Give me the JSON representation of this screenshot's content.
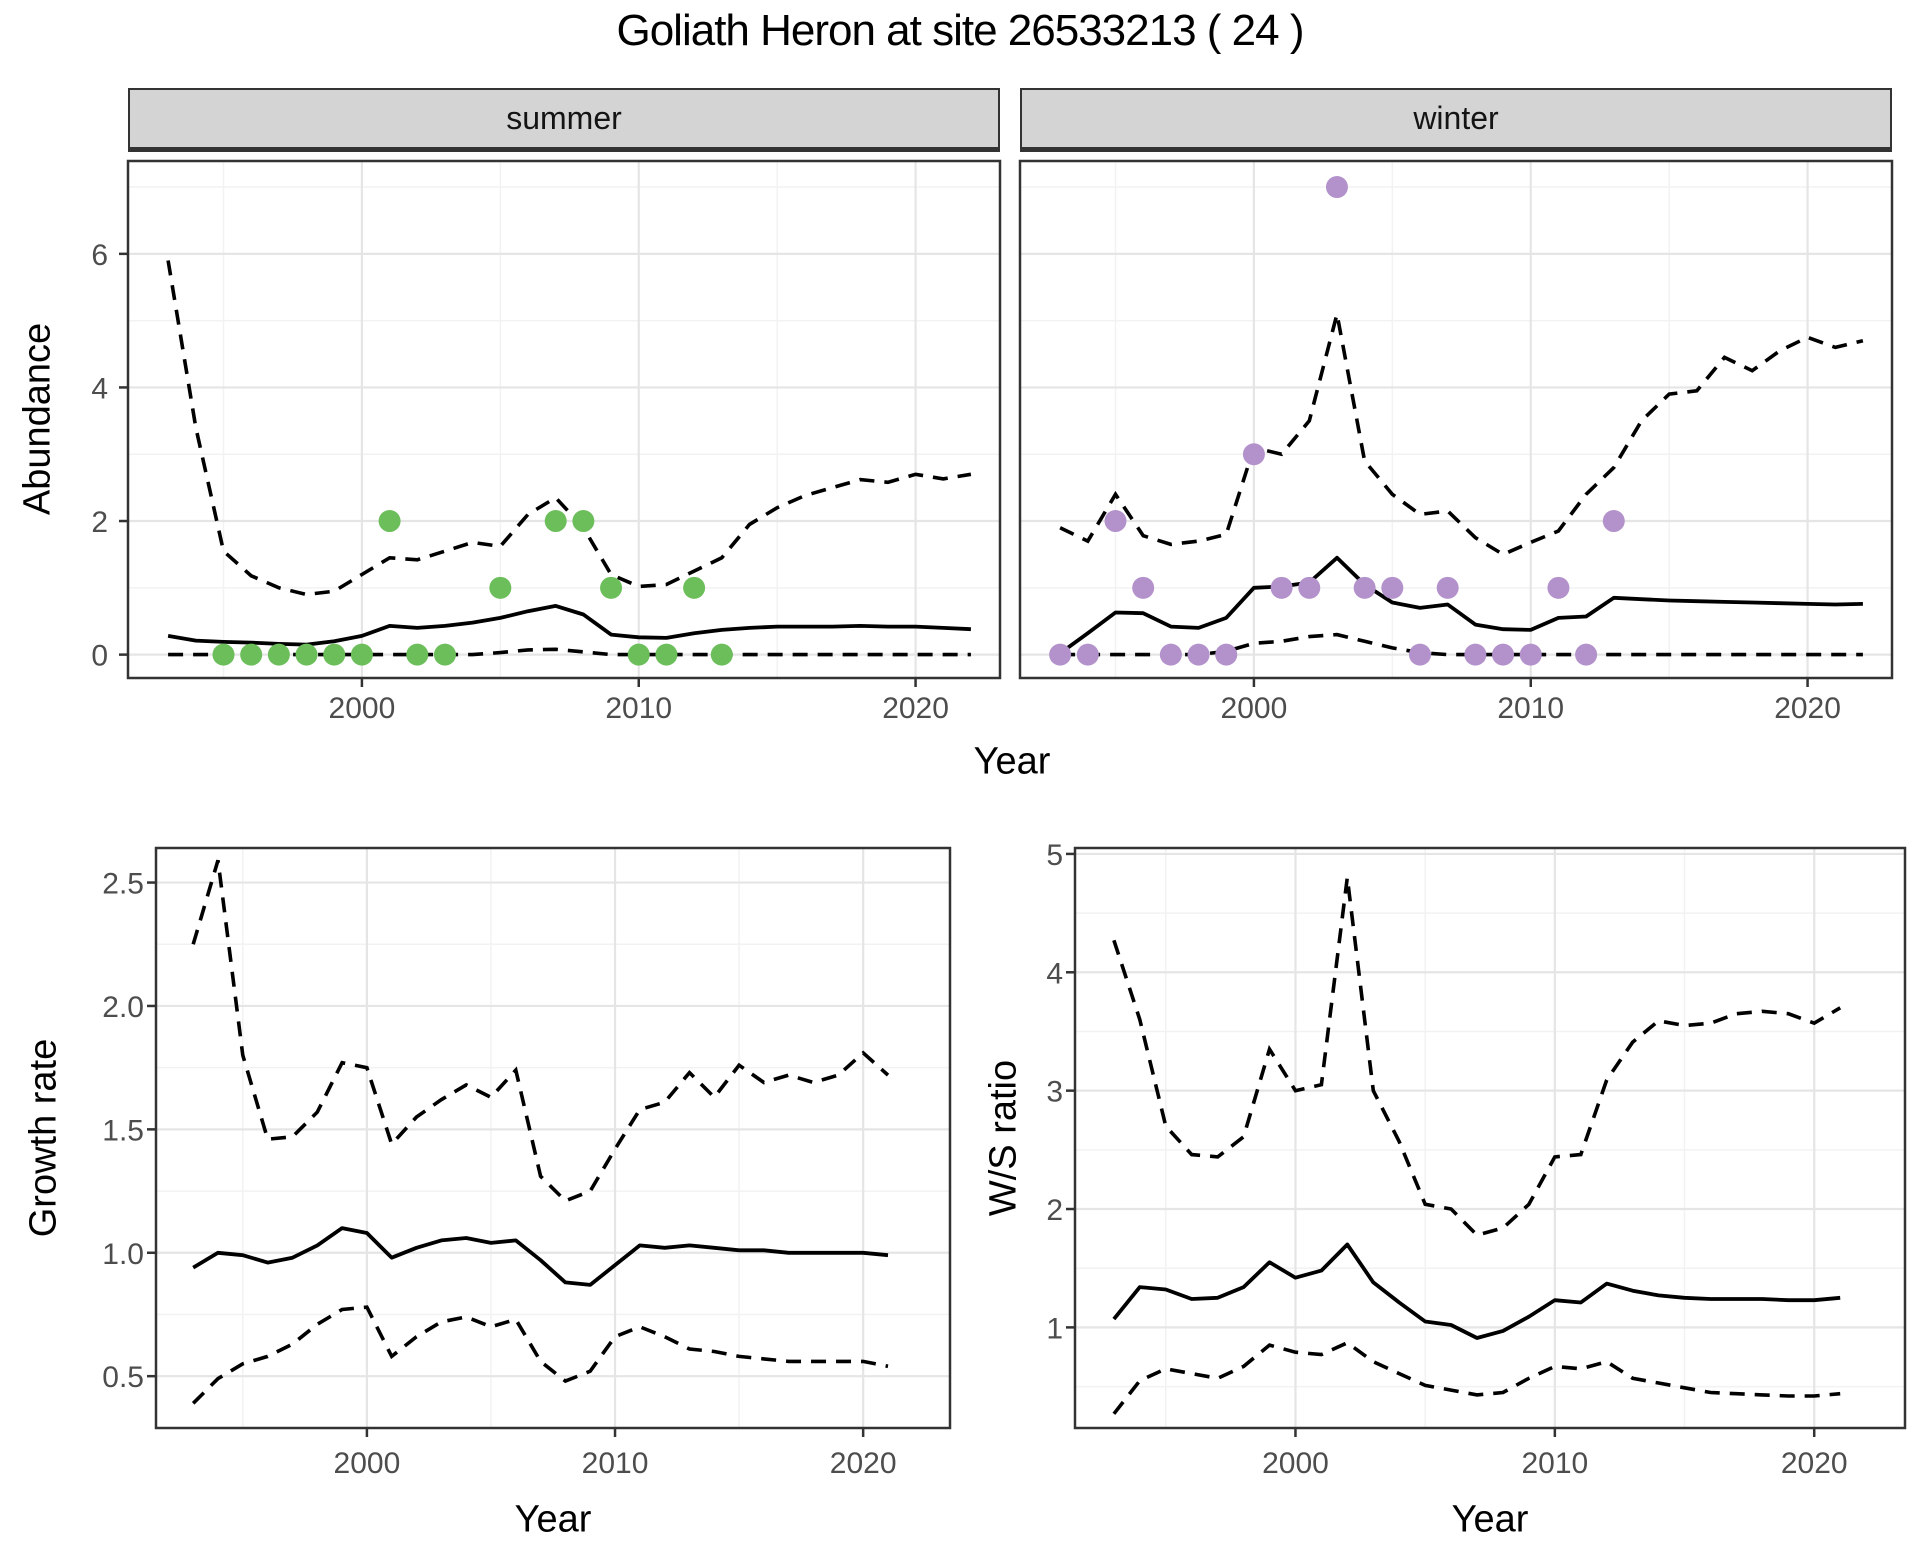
{
  "title": "Goliath Heron at site 26533213 ( 24 )",
  "facets": {
    "summer": "summer",
    "winter": "winter"
  },
  "axes": {
    "year_label": "Year",
    "abundance_label": "Abundance",
    "growth_label": "Growth rate",
    "ws_label": "W/S ratio",
    "x_tick_labels": [
      "2000",
      "2010",
      "2020"
    ]
  },
  "colors": {
    "summer_point": "#6cbe5b",
    "winter_point": "#b392cc",
    "line": "#000000",
    "grid_major": "#e5e5e5",
    "grid_minor": "#f2f2f2",
    "strip_bg": "#d4d4d4",
    "panel_border": "#333333",
    "tick_text": "#4d4d4d"
  },
  "chart_data": [
    {
      "type": "line",
      "name": "abundance-summer",
      "facet": "summer",
      "ylabel": "Abundance",
      "xlabel": "Year",
      "x": [
        1993,
        1994,
        1995,
        1996,
        1997,
        1998,
        1999,
        2000,
        2001,
        2002,
        2003,
        2004,
        2005,
        2006,
        2007,
        2008,
        2009,
        2010,
        2011,
        2012,
        2013,
        2014,
        2015,
        2016,
        2017,
        2018,
        2019,
        2020,
        2021,
        2022
      ],
      "series": [
        {
          "name": "median",
          "style": "solid",
          "values": [
            0.28,
            0.21,
            0.19,
            0.18,
            0.16,
            0.15,
            0.2,
            0.28,
            0.43,
            0.4,
            0.43,
            0.48,
            0.55,
            0.65,
            0.73,
            0.6,
            0.3,
            0.26,
            0.25,
            0.32,
            0.37,
            0.4,
            0.42,
            0.42,
            0.42,
            0.43,
            0.42,
            0.42,
            0.4,
            0.38
          ]
        },
        {
          "name": "upper CI",
          "style": "dashed",
          "values": [
            5.9,
            3.4,
            1.55,
            1.18,
            1.0,
            0.9,
            0.95,
            1.2,
            1.45,
            1.42,
            1.55,
            1.68,
            1.62,
            2.1,
            2.35,
            1.9,
            1.2,
            1.02,
            1.05,
            1.25,
            1.45,
            1.95,
            2.2,
            2.38,
            2.5,
            2.62,
            2.58,
            2.7,
            2.63,
            2.7
          ]
        },
        {
          "name": "lower CI",
          "style": "dashed",
          "values": [
            0,
            0,
            0,
            0,
            0,
            0,
            0,
            0,
            0,
            0,
            0,
            0,
            0.03,
            0.07,
            0.08,
            0.04,
            0,
            0,
            0,
            0,
            0,
            0,
            0,
            0,
            0,
            0,
            0,
            0,
            0,
            0
          ]
        }
      ],
      "points": {
        "name": "observed counts",
        "color_key": "summer_point",
        "data": [
          [
            1995,
            0
          ],
          [
            1996,
            0
          ],
          [
            1997,
            0
          ],
          [
            1998,
            0
          ],
          [
            1999,
            0
          ],
          [
            2000,
            0
          ],
          [
            2001,
            2
          ],
          [
            2002,
            0
          ],
          [
            2003,
            0
          ],
          [
            2005,
            1
          ],
          [
            2007,
            2
          ],
          [
            2008,
            2
          ],
          [
            2009,
            1
          ],
          [
            2010,
            0
          ],
          [
            2011,
            0
          ],
          [
            2012,
            1
          ],
          [
            2013,
            0
          ]
        ]
      },
      "ylim": [
        -0.35,
        7.39
      ],
      "y_ticks": [
        0,
        2,
        4,
        6
      ],
      "y_tick_labels": [
        "0",
        "2",
        "4",
        "6"
      ],
      "y_minor": [
        1,
        3,
        5,
        7
      ],
      "x_major": [
        2000,
        2010,
        2020
      ],
      "x_minor": [
        1995,
        2005,
        2015
      ]
    },
    {
      "type": "line",
      "name": "abundance-winter",
      "facet": "winter",
      "ylabel": "Abundance",
      "xlabel": "Year",
      "x": [
        1993,
        1994,
        1995,
        1996,
        1997,
        1998,
        1999,
        2000,
        2001,
        2002,
        2003,
        2004,
        2005,
        2006,
        2007,
        2008,
        2009,
        2010,
        2011,
        2012,
        2013,
        2014,
        2015,
        2016,
        2017,
        2018,
        2019,
        2020,
        2021,
        2022
      ],
      "series": [
        {
          "name": "median",
          "style": "solid",
          "values": [
            0.02,
            0.32,
            0.63,
            0.62,
            0.42,
            0.4,
            0.55,
            1.0,
            1.02,
            1.08,
            1.45,
            1.05,
            0.78,
            0.7,
            0.75,
            0.45,
            0.38,
            0.37,
            0.55,
            0.57,
            0.85,
            0.83,
            0.81,
            0.8,
            0.79,
            0.78,
            0.77,
            0.76,
            0.75,
            0.76
          ]
        },
        {
          "name": "upper CI",
          "style": "dashed",
          "values": [
            1.9,
            1.7,
            2.4,
            1.78,
            1.65,
            1.7,
            1.8,
            3.1,
            3.0,
            3.5,
            5.1,
            2.9,
            2.4,
            2.1,
            2.15,
            1.75,
            1.5,
            1.68,
            1.85,
            2.4,
            2.8,
            3.5,
            3.9,
            3.95,
            4.45,
            4.25,
            4.55,
            4.75,
            4.6,
            4.7
          ]
        },
        {
          "name": "lower CI",
          "style": "dashed",
          "values": [
            0,
            0,
            0,
            0,
            0,
            0,
            0.05,
            0.17,
            0.2,
            0.27,
            0.3,
            0.2,
            0.1,
            0.03,
            0,
            0,
            0,
            0,
            0,
            0,
            0,
            0,
            0,
            0,
            0,
            0,
            0,
            0,
            0,
            0
          ]
        }
      ],
      "points": {
        "name": "observed counts",
        "color_key": "winter_point",
        "data": [
          [
            1993,
            0
          ],
          [
            1994,
            0
          ],
          [
            1995,
            2
          ],
          [
            1996,
            1
          ],
          [
            1997,
            0
          ],
          [
            1998,
            0
          ],
          [
            1999,
            0
          ],
          [
            2000,
            3
          ],
          [
            2001,
            1
          ],
          [
            2002,
            1
          ],
          [
            2003,
            7
          ],
          [
            2004,
            1
          ],
          [
            2005,
            1
          ],
          [
            2006,
            0
          ],
          [
            2007,
            1
          ],
          [
            2008,
            0
          ],
          [
            2009,
            0
          ],
          [
            2010,
            0
          ],
          [
            2011,
            1
          ],
          [
            2012,
            0
          ],
          [
            2013,
            2
          ]
        ]
      },
      "ylim": [
        -0.35,
        7.39
      ],
      "y_ticks": [
        0,
        2,
        4,
        6
      ],
      "y_tick_labels": [
        "0",
        "2",
        "4",
        "6"
      ],
      "y_minor": [
        1,
        3,
        5,
        7
      ],
      "x_major": [
        2000,
        2010,
        2020
      ],
      "x_minor": [
        1995,
        2005,
        2015
      ]
    },
    {
      "type": "line",
      "name": "growth-rate",
      "ylabel": "Growth rate",
      "xlabel": "Year",
      "x": [
        1993,
        1994,
        1995,
        1996,
        1997,
        1998,
        1999,
        2000,
        2001,
        2002,
        2003,
        2004,
        2005,
        2006,
        2007,
        2008,
        2009,
        2010,
        2011,
        2012,
        2013,
        2014,
        2015,
        2016,
        2017,
        2018,
        2019,
        2020,
        2021
      ],
      "series": [
        {
          "name": "median",
          "style": "solid",
          "values": [
            0.94,
            1.0,
            0.99,
            0.96,
            0.98,
            1.03,
            1.1,
            1.08,
            0.98,
            1.02,
            1.05,
            1.06,
            1.04,
            1.05,
            0.97,
            0.88,
            0.87,
            0.95,
            1.03,
            1.02,
            1.03,
            1.02,
            1.01,
            1.01,
            1.0,
            1.0,
            1.0,
            1.0,
            0.99
          ]
        },
        {
          "name": "upper CI",
          "style": "dashed",
          "values": [
            2.25,
            2.59,
            1.8,
            1.46,
            1.47,
            1.57,
            1.77,
            1.75,
            1.44,
            1.55,
            1.62,
            1.68,
            1.63,
            1.74,
            1.31,
            1.21,
            1.25,
            1.42,
            1.58,
            1.61,
            1.73,
            1.63,
            1.76,
            1.69,
            1.72,
            1.69,
            1.72,
            1.81,
            1.72
          ]
        },
        {
          "name": "lower CI",
          "style": "dashed",
          "values": [
            0.39,
            0.49,
            0.55,
            0.58,
            0.63,
            0.71,
            0.77,
            0.78,
            0.58,
            0.66,
            0.72,
            0.74,
            0.7,
            0.73,
            0.56,
            0.48,
            0.52,
            0.66,
            0.7,
            0.66,
            0.61,
            0.6,
            0.58,
            0.57,
            0.56,
            0.56,
            0.56,
            0.56,
            0.54
          ]
        }
      ],
      "points": null,
      "ylim": [
        0.29,
        2.64
      ],
      "y_ticks": [
        0.5,
        1.0,
        1.5,
        2.0,
        2.5
      ],
      "y_tick_labels": [
        "0.5",
        "1.0",
        "1.5",
        "2.0",
        "2.5"
      ],
      "y_minor": [
        0.75,
        1.25,
        1.75,
        2.25
      ],
      "x_major": [
        2000,
        2010,
        2020
      ],
      "x_minor": [
        1995,
        2005,
        2015
      ]
    },
    {
      "type": "line",
      "name": "ws-ratio",
      "ylabel": "W/S ratio",
      "xlabel": "Year",
      "x": [
        1993,
        1994,
        1995,
        1996,
        1997,
        1998,
        1999,
        2000,
        2001,
        2002,
        2003,
        2004,
        2005,
        2006,
        2007,
        2008,
        2009,
        2010,
        2011,
        2012,
        2013,
        2014,
        2015,
        2016,
        2017,
        2018,
        2019,
        2020,
        2021
      ],
      "series": [
        {
          "name": "median",
          "style": "solid",
          "values": [
            1.07,
            1.34,
            1.32,
            1.24,
            1.25,
            1.34,
            1.55,
            1.42,
            1.48,
            1.7,
            1.38,
            1.21,
            1.05,
            1.02,
            0.91,
            0.97,
            1.09,
            1.23,
            1.21,
            1.37,
            1.31,
            1.27,
            1.25,
            1.24,
            1.24,
            1.24,
            1.23,
            1.23,
            1.25
          ]
        },
        {
          "name": "upper CI",
          "style": "dashed",
          "values": [
            4.27,
            3.6,
            2.7,
            2.46,
            2.44,
            2.61,
            3.35,
            3.0,
            3.05,
            4.8,
            3.0,
            2.57,
            2.04,
            2.0,
            1.78,
            1.84,
            2.04,
            2.44,
            2.46,
            3.09,
            3.41,
            3.59,
            3.55,
            3.57,
            3.65,
            3.67,
            3.65,
            3.57,
            3.7
          ]
        },
        {
          "name": "lower CI",
          "style": "dashed",
          "values": [
            0.27,
            0.55,
            0.65,
            0.61,
            0.57,
            0.67,
            0.85,
            0.79,
            0.77,
            0.87,
            0.71,
            0.61,
            0.51,
            0.47,
            0.43,
            0.45,
            0.57,
            0.67,
            0.65,
            0.71,
            0.57,
            0.53,
            0.49,
            0.45,
            0.44,
            0.43,
            0.42,
            0.42,
            0.44
          ]
        }
      ],
      "points": null,
      "ylim": [
        0.15,
        5.05
      ],
      "y_ticks": [
        1,
        2,
        3,
        4,
        5
      ],
      "y_tick_labels": [
        "1",
        "2",
        "3",
        "4",
        "5"
      ],
      "y_minor": [
        0.5,
        1.5,
        2.5,
        3.5,
        4.5
      ],
      "x_major": [
        2000,
        2010,
        2020
      ],
      "x_minor": [
        1995,
        2005,
        2015
      ]
    }
  ]
}
